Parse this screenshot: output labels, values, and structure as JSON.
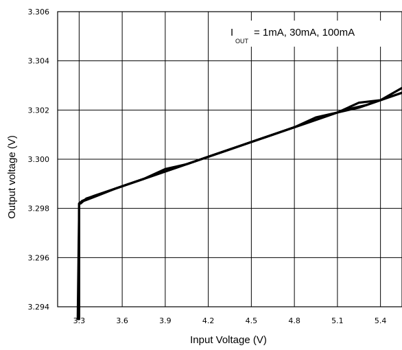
{
  "chart_data": {
    "type": "line",
    "xlabel": "Input Voltage (V)",
    "ylabel": "Output voltage (V)",
    "xlim": [
      3.15,
      5.55
    ],
    "ylim": [
      3.294,
      3.306
    ],
    "x_ticks": [
      3.3,
      3.6,
      3.9,
      4.2,
      4.5,
      4.8,
      5.1,
      5.4
    ],
    "x_tick_labels": [
      "3.3",
      "3.6",
      "3.9",
      "4.2",
      "4.5",
      "4.8",
      "5.1",
      "5.4"
    ],
    "y_ticks": [
      3.294,
      3.296,
      3.298,
      3.3,
      3.302,
      3.304,
      3.306
    ],
    "y_tick_labels": [
      "3.294",
      "3.296",
      "3.298",
      "3.300",
      "3.302",
      "3.304",
      "3.306"
    ],
    "grid": true,
    "annotation": {
      "prefix": "I",
      "subscript": "OUT",
      "text": "= 1mA, 30mA, 100mA"
    },
    "series": [
      {
        "x": [
          3.29,
          3.3,
          3.31,
          3.35,
          3.45,
          3.6,
          3.75,
          3.9,
          4.05,
          4.2,
          4.35,
          4.5,
          4.65,
          4.8,
          4.95,
          5.1,
          5.25,
          5.4,
          5.55
        ],
        "y": [
          3.2935,
          3.2982,
          3.2982,
          3.2984,
          3.2986,
          3.2989,
          3.2992,
          3.2996,
          3.2998,
          3.3001,
          3.3004,
          3.3007,
          3.301,
          3.3013,
          3.3017,
          3.3019,
          3.3023,
          3.3024,
          3.3029
        ]
      },
      {
        "x": [
          3.295,
          3.3,
          3.32,
          3.4,
          3.5,
          3.65,
          3.8,
          3.95,
          4.1,
          4.25,
          4.4,
          4.55,
          4.7,
          4.85,
          5.0,
          5.1,
          5.25,
          5.4,
          5.55
        ],
        "y": [
          3.2935,
          3.2982,
          3.2983,
          3.2985,
          3.2987,
          3.299,
          3.2993,
          3.2996,
          3.2999,
          3.3002,
          3.3005,
          3.3008,
          3.3011,
          3.3014,
          3.3017,
          3.3019,
          3.3021,
          3.3024,
          3.3027
        ]
      },
      {
        "x": [
          3.3,
          3.3,
          3.33,
          3.42,
          3.55,
          3.7,
          3.85,
          4.0,
          4.15,
          4.3,
          4.45,
          4.6,
          4.75,
          4.9,
          5.05,
          5.15,
          5.3,
          5.45,
          5.55
        ],
        "y": [
          3.2935,
          3.2982,
          3.2983,
          3.2985,
          3.2988,
          3.2991,
          3.2994,
          3.2997,
          3.3,
          3.3003,
          3.3006,
          3.3009,
          3.3012,
          3.3015,
          3.3018,
          3.302,
          3.3022,
          3.3025,
          3.3027
        ]
      }
    ]
  }
}
